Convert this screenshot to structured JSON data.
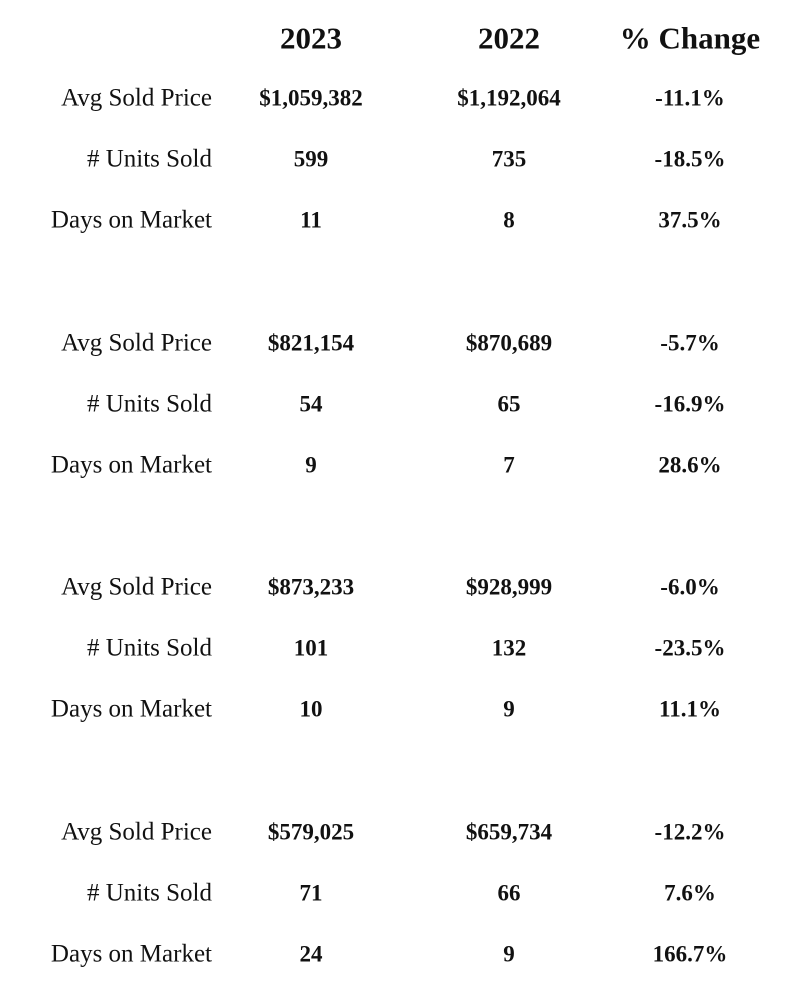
{
  "table": {
    "columns": [
      "2023",
      "2022",
      "% Change"
    ],
    "groups": [
      [
        [
          "Avg Sold Price",
          "$1,059,382",
          "$1,192,064",
          "-11.1%"
        ],
        [
          "# Units Sold",
          "599",
          "735",
          "-18.5%"
        ],
        [
          "Days on Market",
          "11",
          "8",
          "37.5%"
        ]
      ],
      [
        [
          "Avg Sold Price",
          "$821,154",
          "$870,689",
          "-5.7%"
        ],
        [
          "# Units Sold",
          "54",
          "65",
          "-16.9%"
        ],
        [
          "Days on Market",
          "9",
          "7",
          "28.6%"
        ]
      ],
      [
        [
          "Avg Sold Price",
          "$873,233",
          "$928,999",
          "-6.0%"
        ],
        [
          "# Units Sold",
          "101",
          "132",
          "-23.5%"
        ],
        [
          "Days on Market",
          "10",
          "9",
          "11.1%"
        ]
      ],
      [
        [
          "Avg Sold Price",
          "$579,025",
          "$659,734",
          "-12.2%"
        ],
        [
          "# Units Sold",
          "71",
          "66",
          "7.6%"
        ],
        [
          "Days on Market",
          "24",
          "9",
          "166.7%"
        ]
      ]
    ]
  }
}
